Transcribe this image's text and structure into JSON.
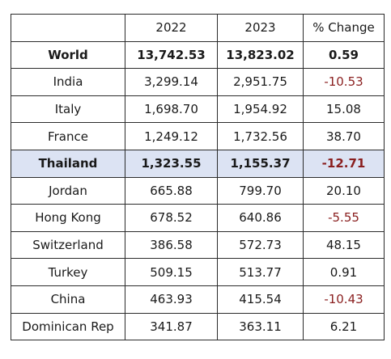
{
  "table": {
    "headers": [
      "",
      "2022",
      "2023",
      "% Change"
    ],
    "rows": [
      {
        "country": "World",
        "y2022": "13,742.53",
        "y2023": "13,823.02",
        "change": "0.59"
      },
      {
        "country": "India",
        "y2022": "3,299.14",
        "y2023": "2,951.75",
        "change": "-10.53"
      },
      {
        "country": "Italy",
        "y2022": "1,698.70",
        "y2023": "1,954.92",
        "change": "15.08"
      },
      {
        "country": "France",
        "y2022": "1,249.12",
        "y2023": "1,732.56",
        "change": "38.70"
      },
      {
        "country": "Thailand",
        "y2022": "1,323.55",
        "y2023": "1,155.37",
        "change": "-12.71"
      },
      {
        "country": "Jordan",
        "y2022": "665.88",
        "y2023": "799.70",
        "change": "20.10"
      },
      {
        "country": "Hong Kong",
        "y2022": "678.52",
        "y2023": "640.86",
        "change": "-5.55"
      },
      {
        "country": "Switzerland",
        "y2022": "386.58",
        "y2023": "572.73",
        "change": "48.15"
      },
      {
        "country": "Turkey",
        "y2022": "509.15",
        "y2023": "513.77",
        "change": "0.91"
      },
      {
        "country": "China",
        "y2022": "463.93",
        "y2023": "415.54",
        "change": "-10.43"
      },
      {
        "country": "Dominican Rep",
        "y2022": "341.87",
        "y2023": "363.11",
        "change": "6.21"
      }
    ]
  },
  "colors": {
    "highlight_row": "#dce3f3",
    "negative_text": "#8a1f1f"
  }
}
